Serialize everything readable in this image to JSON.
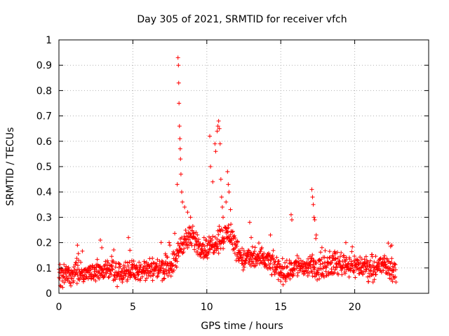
{
  "chart_data": {
    "type": "scatter",
    "title": "Day 305 of 2021, SRMTID for receiver vfch",
    "xlabel": "GPS time / hours",
    "ylabel": "SRMTID / TECUs",
    "xlim": [
      0,
      25
    ],
    "ylim": [
      0,
      1
    ],
    "x_ticks": [
      0,
      5,
      10,
      15,
      20
    ],
    "y_ticks": [
      0,
      0.1,
      0.2,
      0.3,
      0.4,
      0.5,
      0.6,
      0.7,
      0.8,
      0.9,
      1
    ],
    "x_tick_labels": [
      "0",
      "5",
      "10",
      "15",
      "20"
    ],
    "y_tick_labels": [
      "0",
      "0.1",
      "0.2",
      "0.3",
      "0.4",
      "0.5",
      "0.6",
      "0.7",
      "0.8",
      "0.9",
      "1"
    ],
    "grid": true,
    "marker": "+",
    "marker_color": "#ff0000",
    "series": [
      {
        "name": "SRMTID",
        "baseline_profile": [
          [
            0.0,
            0.07
          ],
          [
            1.0,
            0.08
          ],
          [
            2.0,
            0.08
          ],
          [
            3.0,
            0.09
          ],
          [
            4.0,
            0.08
          ],
          [
            5.0,
            0.09
          ],
          [
            6.0,
            0.09
          ],
          [
            7.0,
            0.1
          ],
          [
            7.8,
            0.12
          ],
          [
            8.3,
            0.2
          ],
          [
            9.0,
            0.22
          ],
          [
            9.5,
            0.19
          ],
          [
            10.0,
            0.17
          ],
          [
            10.5,
            0.2
          ],
          [
            11.0,
            0.22
          ],
          [
            11.5,
            0.24
          ],
          [
            12.0,
            0.18
          ],
          [
            12.5,
            0.13
          ],
          [
            13.0,
            0.14
          ],
          [
            14.0,
            0.13
          ],
          [
            15.0,
            0.09
          ],
          [
            15.5,
            0.08
          ],
          [
            16.0,
            0.11
          ],
          [
            17.0,
            0.1
          ],
          [
            18.0,
            0.11
          ],
          [
            19.0,
            0.12
          ],
          [
            20.0,
            0.11
          ],
          [
            21.0,
            0.1
          ],
          [
            22.0,
            0.11
          ],
          [
            22.5,
            0.1
          ],
          [
            22.8,
            0.07
          ]
        ],
        "peaks": [
          [
            8.0,
            0.43
          ],
          [
            8.05,
            0.93
          ],
          [
            8.08,
            0.9
          ],
          [
            8.1,
            0.83
          ],
          [
            8.12,
            0.75
          ],
          [
            8.15,
            0.66
          ],
          [
            8.18,
            0.61
          ],
          [
            8.2,
            0.57
          ],
          [
            8.22,
            0.53
          ],
          [
            8.25,
            0.47
          ],
          [
            8.3,
            0.4
          ],
          [
            8.35,
            0.36
          ],
          [
            8.5,
            0.34
          ],
          [
            8.7,
            0.32
          ],
          [
            8.9,
            0.3
          ],
          [
            10.2,
            0.62
          ],
          [
            10.25,
            0.5
          ],
          [
            10.4,
            0.44
          ],
          [
            10.55,
            0.59
          ],
          [
            10.6,
            0.56
          ],
          [
            10.7,
            0.64
          ],
          [
            10.75,
            0.66
          ],
          [
            10.8,
            0.68
          ],
          [
            10.85,
            0.65
          ],
          [
            10.9,
            0.59
          ],
          [
            10.95,
            0.45
          ],
          [
            11.0,
            0.38
          ],
          [
            11.05,
            0.34
          ],
          [
            11.1,
            0.3
          ],
          [
            11.3,
            0.36
          ],
          [
            11.4,
            0.48
          ],
          [
            11.45,
            0.43
          ],
          [
            11.5,
            0.4
          ],
          [
            11.6,
            0.33
          ],
          [
            12.9,
            0.28
          ],
          [
            13.0,
            0.22
          ],
          [
            14.3,
            0.23
          ],
          [
            15.7,
            0.31
          ],
          [
            15.75,
            0.29
          ],
          [
            17.1,
            0.41
          ],
          [
            17.15,
            0.38
          ],
          [
            17.2,
            0.35
          ],
          [
            17.25,
            0.3
          ],
          [
            17.3,
            0.29
          ],
          [
            17.4,
            0.23
          ],
          [
            2.8,
            0.21
          ],
          [
            2.9,
            0.18
          ],
          [
            4.7,
            0.22
          ],
          [
            4.8,
            0.17
          ],
          [
            1.25,
            0.19
          ],
          [
            7.5,
            0.19
          ],
          [
            19.4,
            0.2
          ],
          [
            22.5,
            0.19
          ]
        ]
      }
    ]
  }
}
